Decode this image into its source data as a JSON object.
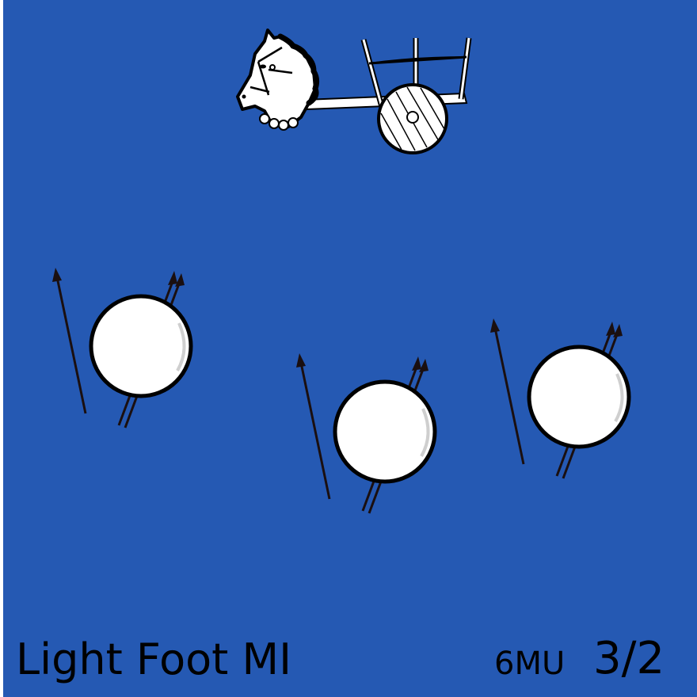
{
  "card": {
    "background_color": "#2559b3",
    "unit_name": "Light Foot MI",
    "movement": "6MU",
    "combat_factor": "3/2",
    "icons": {
      "command": "horse-chariot-icon",
      "troops": "javelinman-icon"
    }
  }
}
